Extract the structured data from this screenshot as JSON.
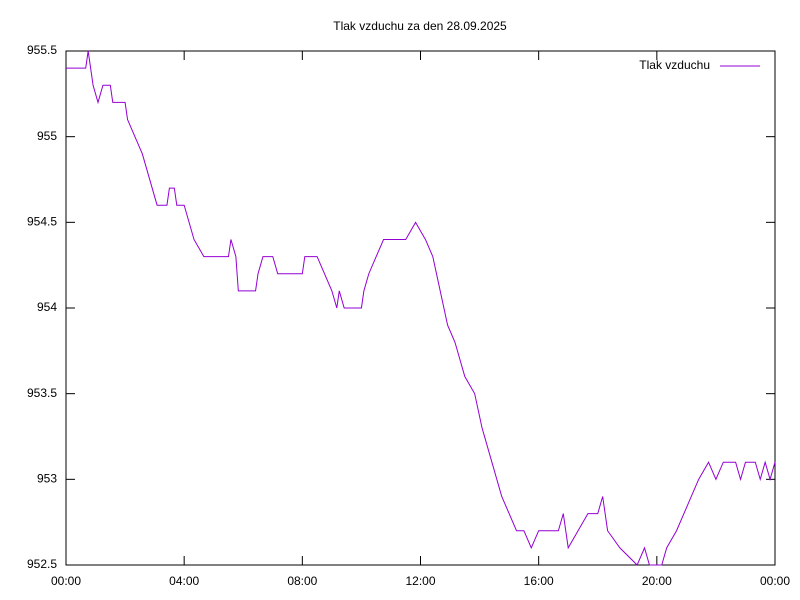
{
  "chart_data": {
    "type": "line",
    "title": "Tlak vzduchu za den 28.09.2025",
    "x": [
      0,
      40,
      45,
      50,
      55,
      65,
      75,
      90,
      95,
      120,
      125,
      140,
      155,
      165,
      175,
      185,
      205,
      210,
      220,
      225,
      240,
      250,
      260,
      280,
      330,
      335,
      345,
      350,
      385,
      390,
      400,
      420,
      430,
      480,
      485,
      510,
      525,
      540,
      550,
      555,
      565,
      600,
      605,
      615,
      630,
      645,
      690,
      710,
      730,
      745,
      760,
      775,
      790,
      810,
      830,
      845,
      865,
      885,
      900,
      915,
      930,
      945,
      960,
      1000,
      1010,
      1020,
      1040,
      1060,
      1080,
      1090,
      1100,
      1125,
      1160,
      1175,
      1185,
      1210,
      1220,
      1240,
      1255,
      1270,
      1285,
      1305,
      1320,
      1335,
      1360,
      1370,
      1380,
      1400,
      1410,
      1420,
      1430,
      1440
    ],
    "series": [
      {
        "name": "Tlak vzduchu",
        "color": "#9400d3",
        "values": [
          955.4,
          955.4,
          955.5,
          955.4,
          955.3,
          955.2,
          955.3,
          955.3,
          955.2,
          955.2,
          955.1,
          955.0,
          954.9,
          954.8,
          954.7,
          954.6,
          954.6,
          954.7,
          954.7,
          954.6,
          954.6,
          954.5,
          954.4,
          954.3,
          954.3,
          954.4,
          954.3,
          954.1,
          954.1,
          954.2,
          954.3,
          954.3,
          954.2,
          954.2,
          954.3,
          954.3,
          954.2,
          954.1,
          954.0,
          954.1,
          954.0,
          954.0,
          954.1,
          954.2,
          954.3,
          954.4,
          954.4,
          954.5,
          954.4,
          954.3,
          954.1,
          953.9,
          953.8,
          953.6,
          953.5,
          953.3,
          953.1,
          952.9,
          952.8,
          952.7,
          952.7,
          952.6,
          952.7,
          952.7,
          952.8,
          952.6,
          952.7,
          952.8,
          952.8,
          952.9,
          952.7,
          952.6,
          952.5,
          952.6,
          952.5,
          952.5,
          952.6,
          952.7,
          952.8,
          952.9,
          953.0,
          953.1,
          953.0,
          953.1,
          953.1,
          953.0,
          953.1,
          953.1,
          953.0,
          953.1,
          953.0,
          953.1
        ]
      }
    ],
    "xlim": [
      0,
      1440
    ],
    "xticks": [
      {
        "value": 0,
        "label": "00:00"
      },
      {
        "value": 240,
        "label": "04:00"
      },
      {
        "value": 480,
        "label": "08:00"
      },
      {
        "value": 720,
        "label": "12:00"
      },
      {
        "value": 960,
        "label": "16:00"
      },
      {
        "value": 1200,
        "label": "20:00"
      },
      {
        "value": 1440,
        "label": "00:00"
      }
    ],
    "ylim": [
      952.5,
      955.5
    ],
    "yticks": [
      952.5,
      953,
      953.5,
      954,
      954.5,
      955,
      955.5
    ],
    "legend": "top-right"
  }
}
